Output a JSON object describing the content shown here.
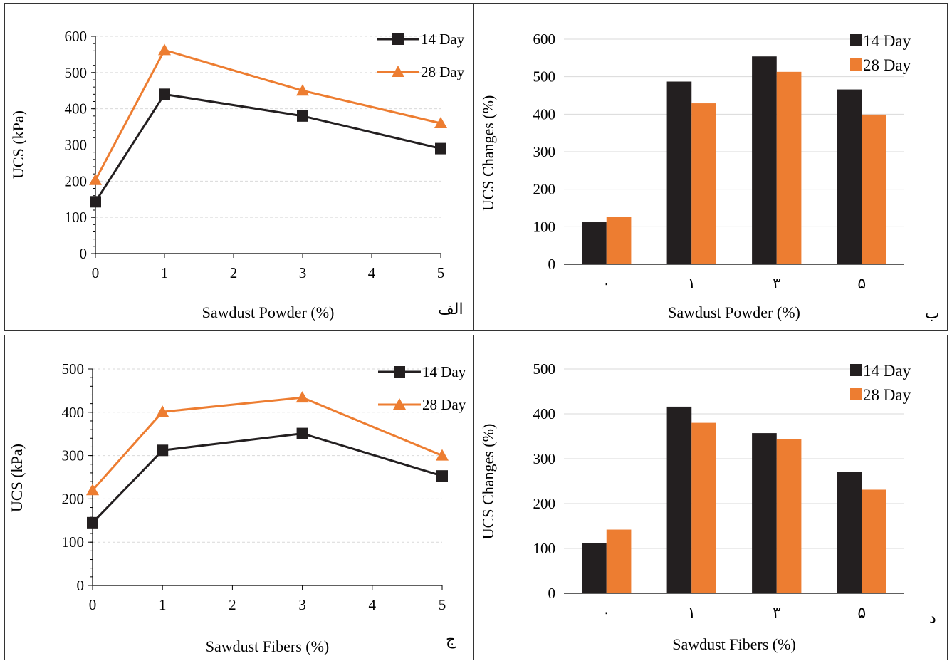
{
  "colors": {
    "day14": "#231f20",
    "day28": "#ed7d31",
    "grid": "#d9d9d9",
    "axis": "#000000"
  },
  "series_names": [
    "14 Day",
    "28 Day"
  ],
  "panels": [
    {
      "tag": "الف"
    },
    {
      "tag": "ب"
    },
    {
      "tag": "ج"
    },
    {
      "tag": "د"
    }
  ],
  "chart_data": [
    {
      "type": "line",
      "title": "",
      "xlabel": "Sawdust Powder (%)",
      "ylabel": "UCS (kPa)",
      "xlim": [
        0,
        5
      ],
      "ylim": [
        0,
        600
      ],
      "xticks": [
        0,
        1,
        2,
        3,
        4,
        5
      ],
      "xtick_labels": [
        "0",
        "1",
        "2",
        "3",
        "4",
        "5"
      ],
      "yticks": [
        0,
        100,
        200,
        300,
        400,
        500,
        600
      ],
      "x": [
        0,
        1,
        3,
        5
      ],
      "series": [
        {
          "name": "14 Day",
          "marker": "square",
          "values": [
            143,
            440,
            380,
            290
          ]
        },
        {
          "name": "28 Day",
          "marker": "triangle",
          "values": [
            203,
            562,
            450,
            360
          ]
        }
      ],
      "grid": true,
      "legend": "top-right"
    },
    {
      "type": "bar",
      "title": "",
      "xlabel": "Sawdust Powder (%)",
      "ylabel": "UCS Changes (%)",
      "categories": [
        "۰",
        "۱",
        "۳",
        "۵"
      ],
      "ylim": [
        0,
        600
      ],
      "yticks": [
        0,
        100,
        200,
        300,
        400,
        500,
        600
      ],
      "series": [
        {
          "name": "14 Day",
          "values": [
            112,
            487,
            554,
            466
          ]
        },
        {
          "name": "28 Day",
          "values": [
            126,
            429,
            513,
            399
          ]
        }
      ],
      "grid": true,
      "legend": "top-right"
    },
    {
      "type": "line",
      "title": "",
      "xlabel": "Sawdust Fibers (%)",
      "ylabel": "UCS (kPa)",
      "xlim": [
        0,
        5
      ],
      "ylim": [
        0,
        500
      ],
      "xticks": [
        0,
        1,
        2,
        3,
        4,
        5
      ],
      "xtick_labels": [
        "0",
        "1",
        "2",
        "3",
        "4",
        "5"
      ],
      "yticks": [
        0,
        100,
        200,
        300,
        400,
        500
      ],
      "x": [
        0,
        1,
        3,
        5
      ],
      "series": [
        {
          "name": "14 Day",
          "marker": "square",
          "values": [
            145,
            312,
            351,
            253
          ]
        },
        {
          "name": "28 Day",
          "marker": "triangle",
          "values": [
            220,
            401,
            434,
            300
          ]
        }
      ],
      "grid": true,
      "legend": "top-right"
    },
    {
      "type": "bar",
      "title": "",
      "xlabel": "Sawdust Fibers (%)",
      "ylabel": "UCS Changes (%)",
      "categories": [
        "۰",
        "۱",
        "۳",
        "۵"
      ],
      "ylim": [
        0,
        500
      ],
      "yticks": [
        0,
        100,
        200,
        300,
        400,
        500
      ],
      "series": [
        {
          "name": "14 Day",
          "values": [
            112,
            416,
            357,
            270
          ]
        },
        {
          "name": "28 Day",
          "values": [
            142,
            380,
            343,
            231
          ]
        }
      ],
      "grid": true,
      "legend": "top-right"
    }
  ]
}
